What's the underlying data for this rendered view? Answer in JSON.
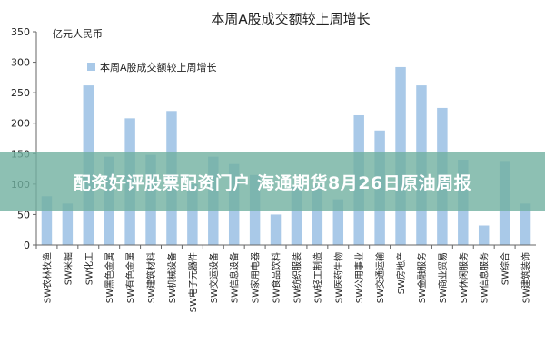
{
  "chart_data": {
    "type": "bar",
    "title": "本周A股成交额较上周增长",
    "ylabel": "亿元人民币",
    "ylim": [
      0,
      350
    ],
    "yticks": [
      0,
      50,
      100,
      150,
      200,
      250,
      300,
      350
    ],
    "grid": false,
    "legend_position": "top-left",
    "series": [
      {
        "name": "本周A股成交额较上周增长",
        "color": "#a9c9e8",
        "values": [
          80,
          68,
          262,
          145,
          208,
          148,
          220,
          100,
          145,
          133,
          115,
          50,
          98,
          98,
          75,
          213,
          188,
          292,
          262,
          225,
          140,
          32,
          138,
          68
        ]
      }
    ],
    "categories": [
      "SW农林牧渔",
      "SW采掘",
      "SW化工",
      "SW黑色金属",
      "SW有色金属",
      "SW建筑材料",
      "SW机械设备",
      "SW电子元器件",
      "SW交运设备",
      "SW信息设备",
      "SW家用电器",
      "SW食品饮料",
      "SW纺织服装",
      "SW轻工制造",
      "SW医药生物",
      "SW公用事业",
      "SW交通运输",
      "SW房地产",
      "SW金融服务",
      "SW商业贸易",
      "SW休闲服务",
      "SW信息服务",
      "SW综合",
      "SW建筑装饰"
    ]
  },
  "banner": {
    "text": "配资好评股票配资门户 海通期货8月26日原油周报"
  }
}
